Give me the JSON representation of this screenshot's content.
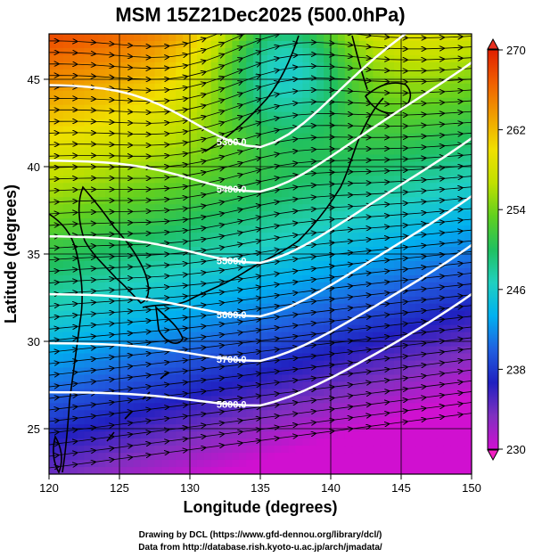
{
  "title": "MSM 15Z21Dec2025 (500.0hPa)",
  "x_axis": {
    "label": "Longitude (degrees)",
    "min": 120,
    "max": 150,
    "ticks": [
      "120",
      "125",
      "130",
      "135",
      "140",
      "145",
      "150"
    ]
  },
  "y_axis": {
    "label": "Latitude  (degrees)",
    "min": 22.4,
    "max": 47.6,
    "ticks": [
      "25",
      "30",
      "35",
      "40",
      "45"
    ]
  },
  "colorbar": {
    "min": 230,
    "max": 270,
    "ticks": [
      "230",
      "238",
      "246",
      "254",
      "262",
      "270"
    ],
    "colors": [
      "#d010d0",
      "#8030c0",
      "#2020c0",
      "#2060e0",
      "#00b0f0",
      "#20d0c0",
      "#20c060",
      "#60d020",
      "#c0e000",
      "#f0e000",
      "#f0a000",
      "#f06000",
      "#e02000"
    ]
  },
  "contours": {
    "interval_m": 100,
    "labels": [
      "5300.0",
      "5400.0",
      "5500.0",
      "5600.0",
      "5700.0",
      "5800.0"
    ]
  },
  "credits": {
    "line1": "Drawing by DCL (https://www.gfd-dennou.org/library/dcl/)",
    "line2": "Data from http://database.rish.kyoto-u.ac.jp/arch/jmadata/"
  }
}
